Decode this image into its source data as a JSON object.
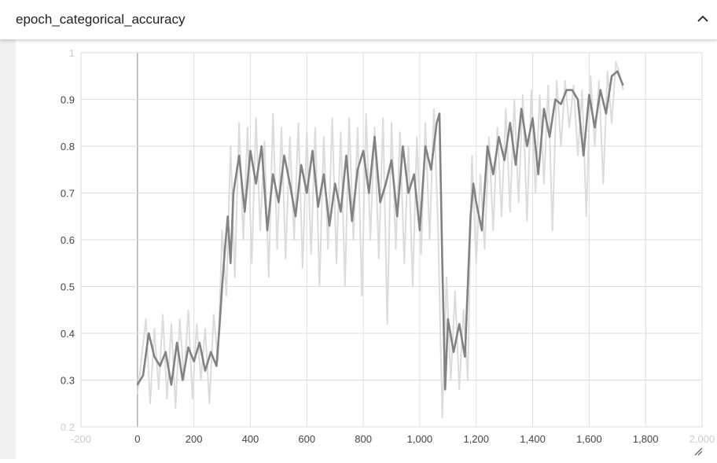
{
  "card": {
    "title": "epoch_categorical_accuracy",
    "collapse_icon": "chevron-up-icon"
  },
  "colors": {
    "smoothed": "#828282",
    "raw": "#dcdcdc",
    "grid": "#dedede",
    "zero_line": "#a8a8a8"
  },
  "chart_data": {
    "type": "line",
    "title": "",
    "xlabel": "",
    "ylabel": "",
    "xlim": [
      -200,
      2000
    ],
    "ylim": [
      0.2,
      1.0
    ],
    "grid": true,
    "x_ticks": [
      -200,
      0,
      200,
      400,
      600,
      800,
      1000,
      1200,
      1400,
      1600,
      1800,
      2000
    ],
    "x_tick_labels": [
      "-200",
      "0",
      "200",
      "400",
      "600",
      "800",
      "1,000",
      "1,200",
      "1,400",
      "1,600",
      "1,800",
      "2,000"
    ],
    "y_ticks": [
      0.2,
      0.3,
      0.4,
      0.5,
      0.6,
      0.7,
      0.8,
      0.9,
      1.0
    ],
    "y_tick_labels": [
      "0.2",
      "0.3",
      "0.4",
      "0.5",
      "0.6",
      "0.7",
      "0.8",
      "0.9",
      "1"
    ],
    "series": [
      {
        "role": "smoothed",
        "x": [
          0,
          20,
          40,
          60,
          80,
          100,
          120,
          140,
          160,
          180,
          200,
          220,
          240,
          260,
          280,
          290,
          300,
          310,
          320,
          330,
          340,
          360,
          380,
          400,
          420,
          440,
          460,
          480,
          500,
          520,
          540,
          560,
          580,
          600,
          620,
          640,
          660,
          680,
          700,
          720,
          740,
          760,
          780,
          800,
          820,
          840,
          860,
          880,
          900,
          920,
          940,
          960,
          980,
          1000,
          1020,
          1040,
          1060,
          1070,
          1080,
          1090,
          1100,
          1120,
          1140,
          1160,
          1180,
          1190,
          1200,
          1220,
          1240,
          1260,
          1280,
          1300,
          1320,
          1340,
          1360,
          1380,
          1400,
          1420,
          1440,
          1460,
          1480,
          1500,
          1520,
          1540,
          1560,
          1580,
          1600,
          1620,
          1640,
          1660,
          1680,
          1700,
          1720
        ],
        "y": [
          0.29,
          0.31,
          0.4,
          0.35,
          0.33,
          0.36,
          0.29,
          0.38,
          0.3,
          0.37,
          0.34,
          0.38,
          0.32,
          0.36,
          0.33,
          0.41,
          0.5,
          0.58,
          0.65,
          0.55,
          0.7,
          0.78,
          0.66,
          0.79,
          0.72,
          0.8,
          0.62,
          0.74,
          0.68,
          0.78,
          0.72,
          0.65,
          0.76,
          0.7,
          0.79,
          0.67,
          0.74,
          0.63,
          0.72,
          0.66,
          0.78,
          0.64,
          0.75,
          0.79,
          0.7,
          0.82,
          0.68,
          0.72,
          0.77,
          0.65,
          0.8,
          0.7,
          0.74,
          0.62,
          0.8,
          0.75,
          0.85,
          0.87,
          0.55,
          0.28,
          0.43,
          0.36,
          0.42,
          0.35,
          0.65,
          0.72,
          0.68,
          0.62,
          0.8,
          0.74,
          0.82,
          0.77,
          0.85,
          0.76,
          0.88,
          0.8,
          0.86,
          0.74,
          0.88,
          0.82,
          0.9,
          0.89,
          0.92,
          0.92,
          0.9,
          0.78,
          0.91,
          0.84,
          0.92,
          0.87,
          0.95,
          0.96,
          0.93
        ]
      },
      {
        "role": "raw",
        "x": [
          0,
          15,
          30,
          45,
          60,
          75,
          90,
          105,
          120,
          135,
          150,
          165,
          180,
          195,
          210,
          225,
          240,
          255,
          270,
          285,
          300,
          315,
          330,
          345,
          360,
          375,
          390,
          405,
          420,
          435,
          450,
          465,
          480,
          495,
          510,
          525,
          540,
          555,
          570,
          585,
          600,
          615,
          630,
          645,
          660,
          675,
          690,
          705,
          720,
          735,
          750,
          765,
          780,
          795,
          810,
          825,
          840,
          855,
          870,
          885,
          900,
          915,
          930,
          945,
          960,
          975,
          990,
          1005,
          1020,
          1035,
          1050,
          1065,
          1080,
          1095,
          1110,
          1125,
          1140,
          1155,
          1170,
          1185,
          1200,
          1215,
          1230,
          1245,
          1260,
          1275,
          1290,
          1305,
          1320,
          1335,
          1350,
          1365,
          1380,
          1395,
          1410,
          1425,
          1440,
          1455,
          1470,
          1485,
          1500,
          1515,
          1530,
          1545,
          1560,
          1575,
          1590,
          1605,
          1620,
          1635,
          1650,
          1665,
          1680,
          1695,
          1710,
          1720
        ],
        "y": [
          0.27,
          0.35,
          0.43,
          0.25,
          0.41,
          0.28,
          0.44,
          0.26,
          0.42,
          0.24,
          0.43,
          0.3,
          0.45,
          0.26,
          0.42,
          0.3,
          0.41,
          0.25,
          0.44,
          0.34,
          0.62,
          0.48,
          0.8,
          0.52,
          0.85,
          0.6,
          0.84,
          0.55,
          0.86,
          0.62,
          0.81,
          0.52,
          0.87,
          0.58,
          0.84,
          0.56,
          0.82,
          0.6,
          0.85,
          0.54,
          0.83,
          0.57,
          0.84,
          0.5,
          0.82,
          0.58,
          0.86,
          0.55,
          0.83,
          0.5,
          0.86,
          0.6,
          0.84,
          0.48,
          0.87,
          0.6,
          0.84,
          0.56,
          0.86,
          0.42,
          0.85,
          0.58,
          0.83,
          0.55,
          0.8,
          0.5,
          0.82,
          0.57,
          0.85,
          0.6,
          0.88,
          0.62,
          0.22,
          0.52,
          0.3,
          0.49,
          0.28,
          0.45,
          0.3,
          0.78,
          0.55,
          0.74,
          0.58,
          0.82,
          0.62,
          0.84,
          0.65,
          0.88,
          0.66,
          0.9,
          0.68,
          0.91,
          0.64,
          0.92,
          0.7,
          0.91,
          0.72,
          0.93,
          0.62,
          0.94,
          0.8,
          0.94,
          0.84,
          0.93,
          0.78,
          0.92,
          0.65,
          0.95,
          0.8,
          0.94,
          0.72,
          0.96,
          0.85,
          0.98,
          0.95,
          0.92
        ]
      }
    ]
  }
}
